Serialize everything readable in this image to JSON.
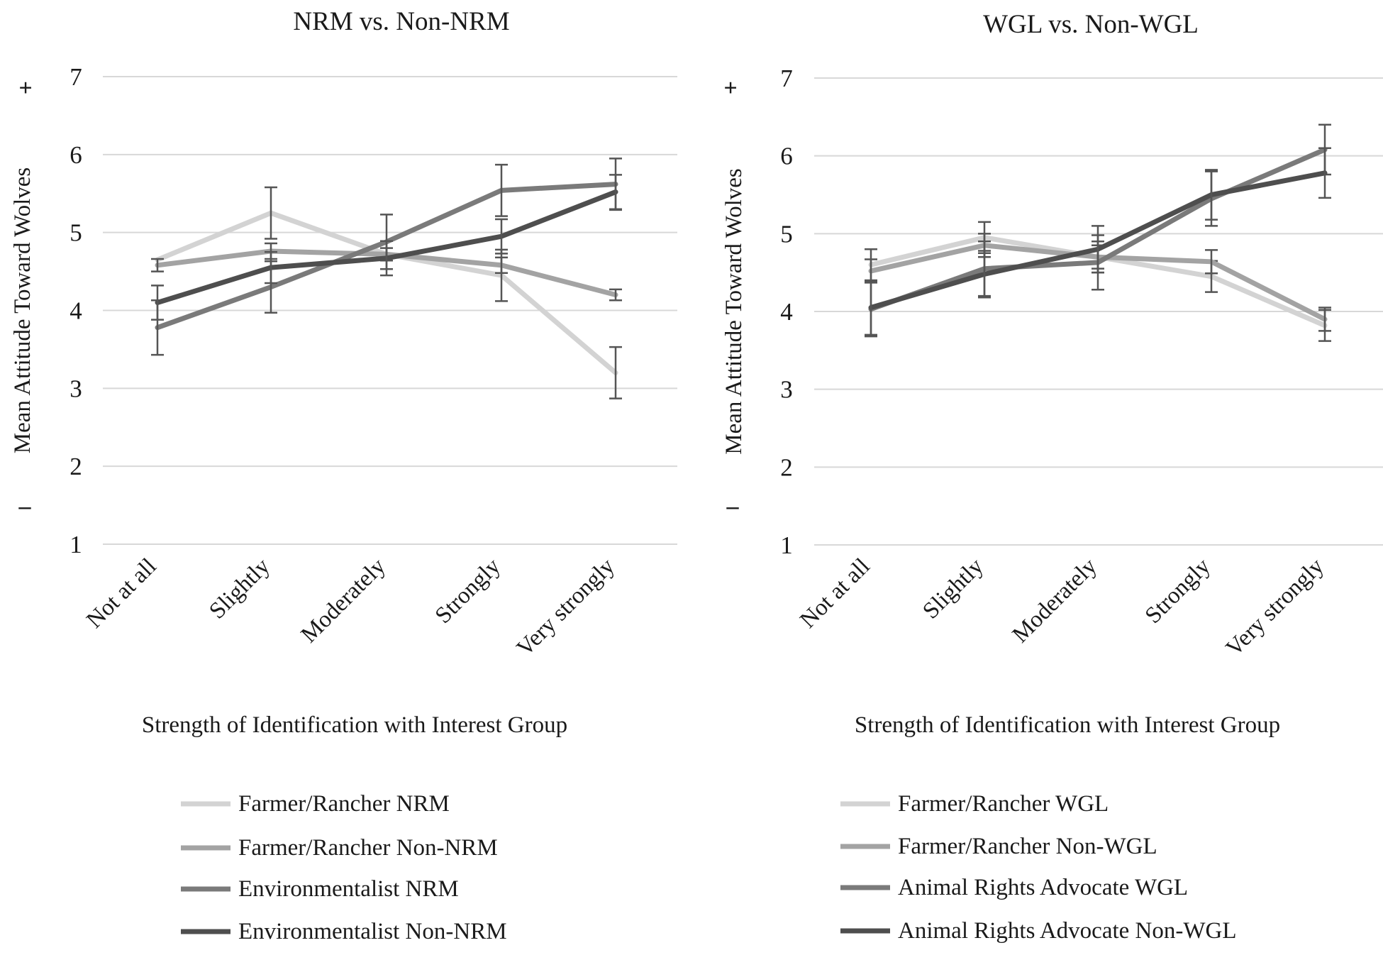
{
  "chart_data": [
    {
      "type": "line",
      "title": "NRM vs. Non-NRM",
      "xlabel": "Strength of Identification with Interest Group",
      "ylabel": "Mean Attitude Toward Wolves",
      "ylim": [
        1,
        7
      ],
      "yticks": [
        "1",
        "2",
        "3",
        "4",
        "5",
        "6",
        "7"
      ],
      "ypos_marker": "+",
      "yneg_marker": "–",
      "categories": [
        "Not at all",
        "Slightly",
        "Moderately",
        "Strongly",
        "Very strongly"
      ],
      "grid": true,
      "legend": "bottom",
      "series": [
        {
          "name": "Farmer/Rancher NRM",
          "color": "#d3d3d3",
          "values": [
            4.65,
            5.25,
            4.72,
            4.45,
            3.2
          ],
          "errors": [
            0,
            0.33,
            0,
            0.33,
            0.33
          ]
        },
        {
          "name": "Farmer/Rancher Non-NRM",
          "color": "#a3a3a3",
          "values": [
            4.58,
            4.76,
            4.72,
            4.58,
            4.2
          ],
          "errors": [
            0.08,
            0.1,
            0.08,
            0.1,
            0.07
          ]
        },
        {
          "name": "Environmentalist NRM",
          "color": "#7a7a7a",
          "values": [
            3.78,
            4.3,
            4.88,
            5.54,
            5.62
          ],
          "errors": [
            0.35,
            0.33,
            0.35,
            0.33,
            0.33
          ]
        },
        {
          "name": "Environmentalist Non-NRM",
          "color": "#4e4e4e",
          "values": [
            4.1,
            4.55,
            4.67,
            4.95,
            5.52
          ],
          "errors": [
            0.22,
            0.2,
            0.22,
            0.22,
            0.22
          ]
        }
      ]
    },
    {
      "type": "line",
      "title": "WGL vs. Non-WGL",
      "xlabel": "Strength of Identification with Interest Group",
      "ylabel": "Mean Attitude Toward Wolves",
      "ylim": [
        1,
        7
      ],
      "yticks": [
        "1",
        "2",
        "3",
        "4",
        "5",
        "6",
        "7"
      ],
      "ypos_marker": "+",
      "yneg_marker": "–",
      "categories": [
        "Not at all",
        "Slightly",
        "Moderately",
        "Strongly",
        "Very strongly"
      ],
      "grid": true,
      "legend": "bottom",
      "series": [
        {
          "name": "Farmer/Rancher WGL",
          "color": "#d3d3d3",
          "values": [
            4.6,
            4.95,
            4.7,
            4.45,
            3.82
          ],
          "errors": [
            0.2,
            0.2,
            0.2,
            0.2,
            0.2
          ]
        },
        {
          "name": "Farmer/Rancher Non-WGL",
          "color": "#a3a3a3",
          "values": [
            4.52,
            4.85,
            4.7,
            4.64,
            3.9
          ],
          "errors": [
            0.15,
            0.15,
            0.15,
            0.15,
            0.15
          ]
        },
        {
          "name": "Animal Rights Advocate WGL",
          "color": "#7a7a7a",
          "values": [
            4.03,
            4.55,
            4.63,
            5.45,
            6.08
          ],
          "errors": [
            0.35,
            0.35,
            0.35,
            0.35,
            0.32
          ]
        },
        {
          "name": "Animal Rights Advocate Non-WGL",
          "color": "#4e4e4e",
          "values": [
            4.05,
            4.48,
            4.8,
            5.5,
            5.78
          ],
          "errors": [
            0.35,
            0.3,
            0.3,
            0.32,
            0.32
          ]
        }
      ]
    }
  ]
}
